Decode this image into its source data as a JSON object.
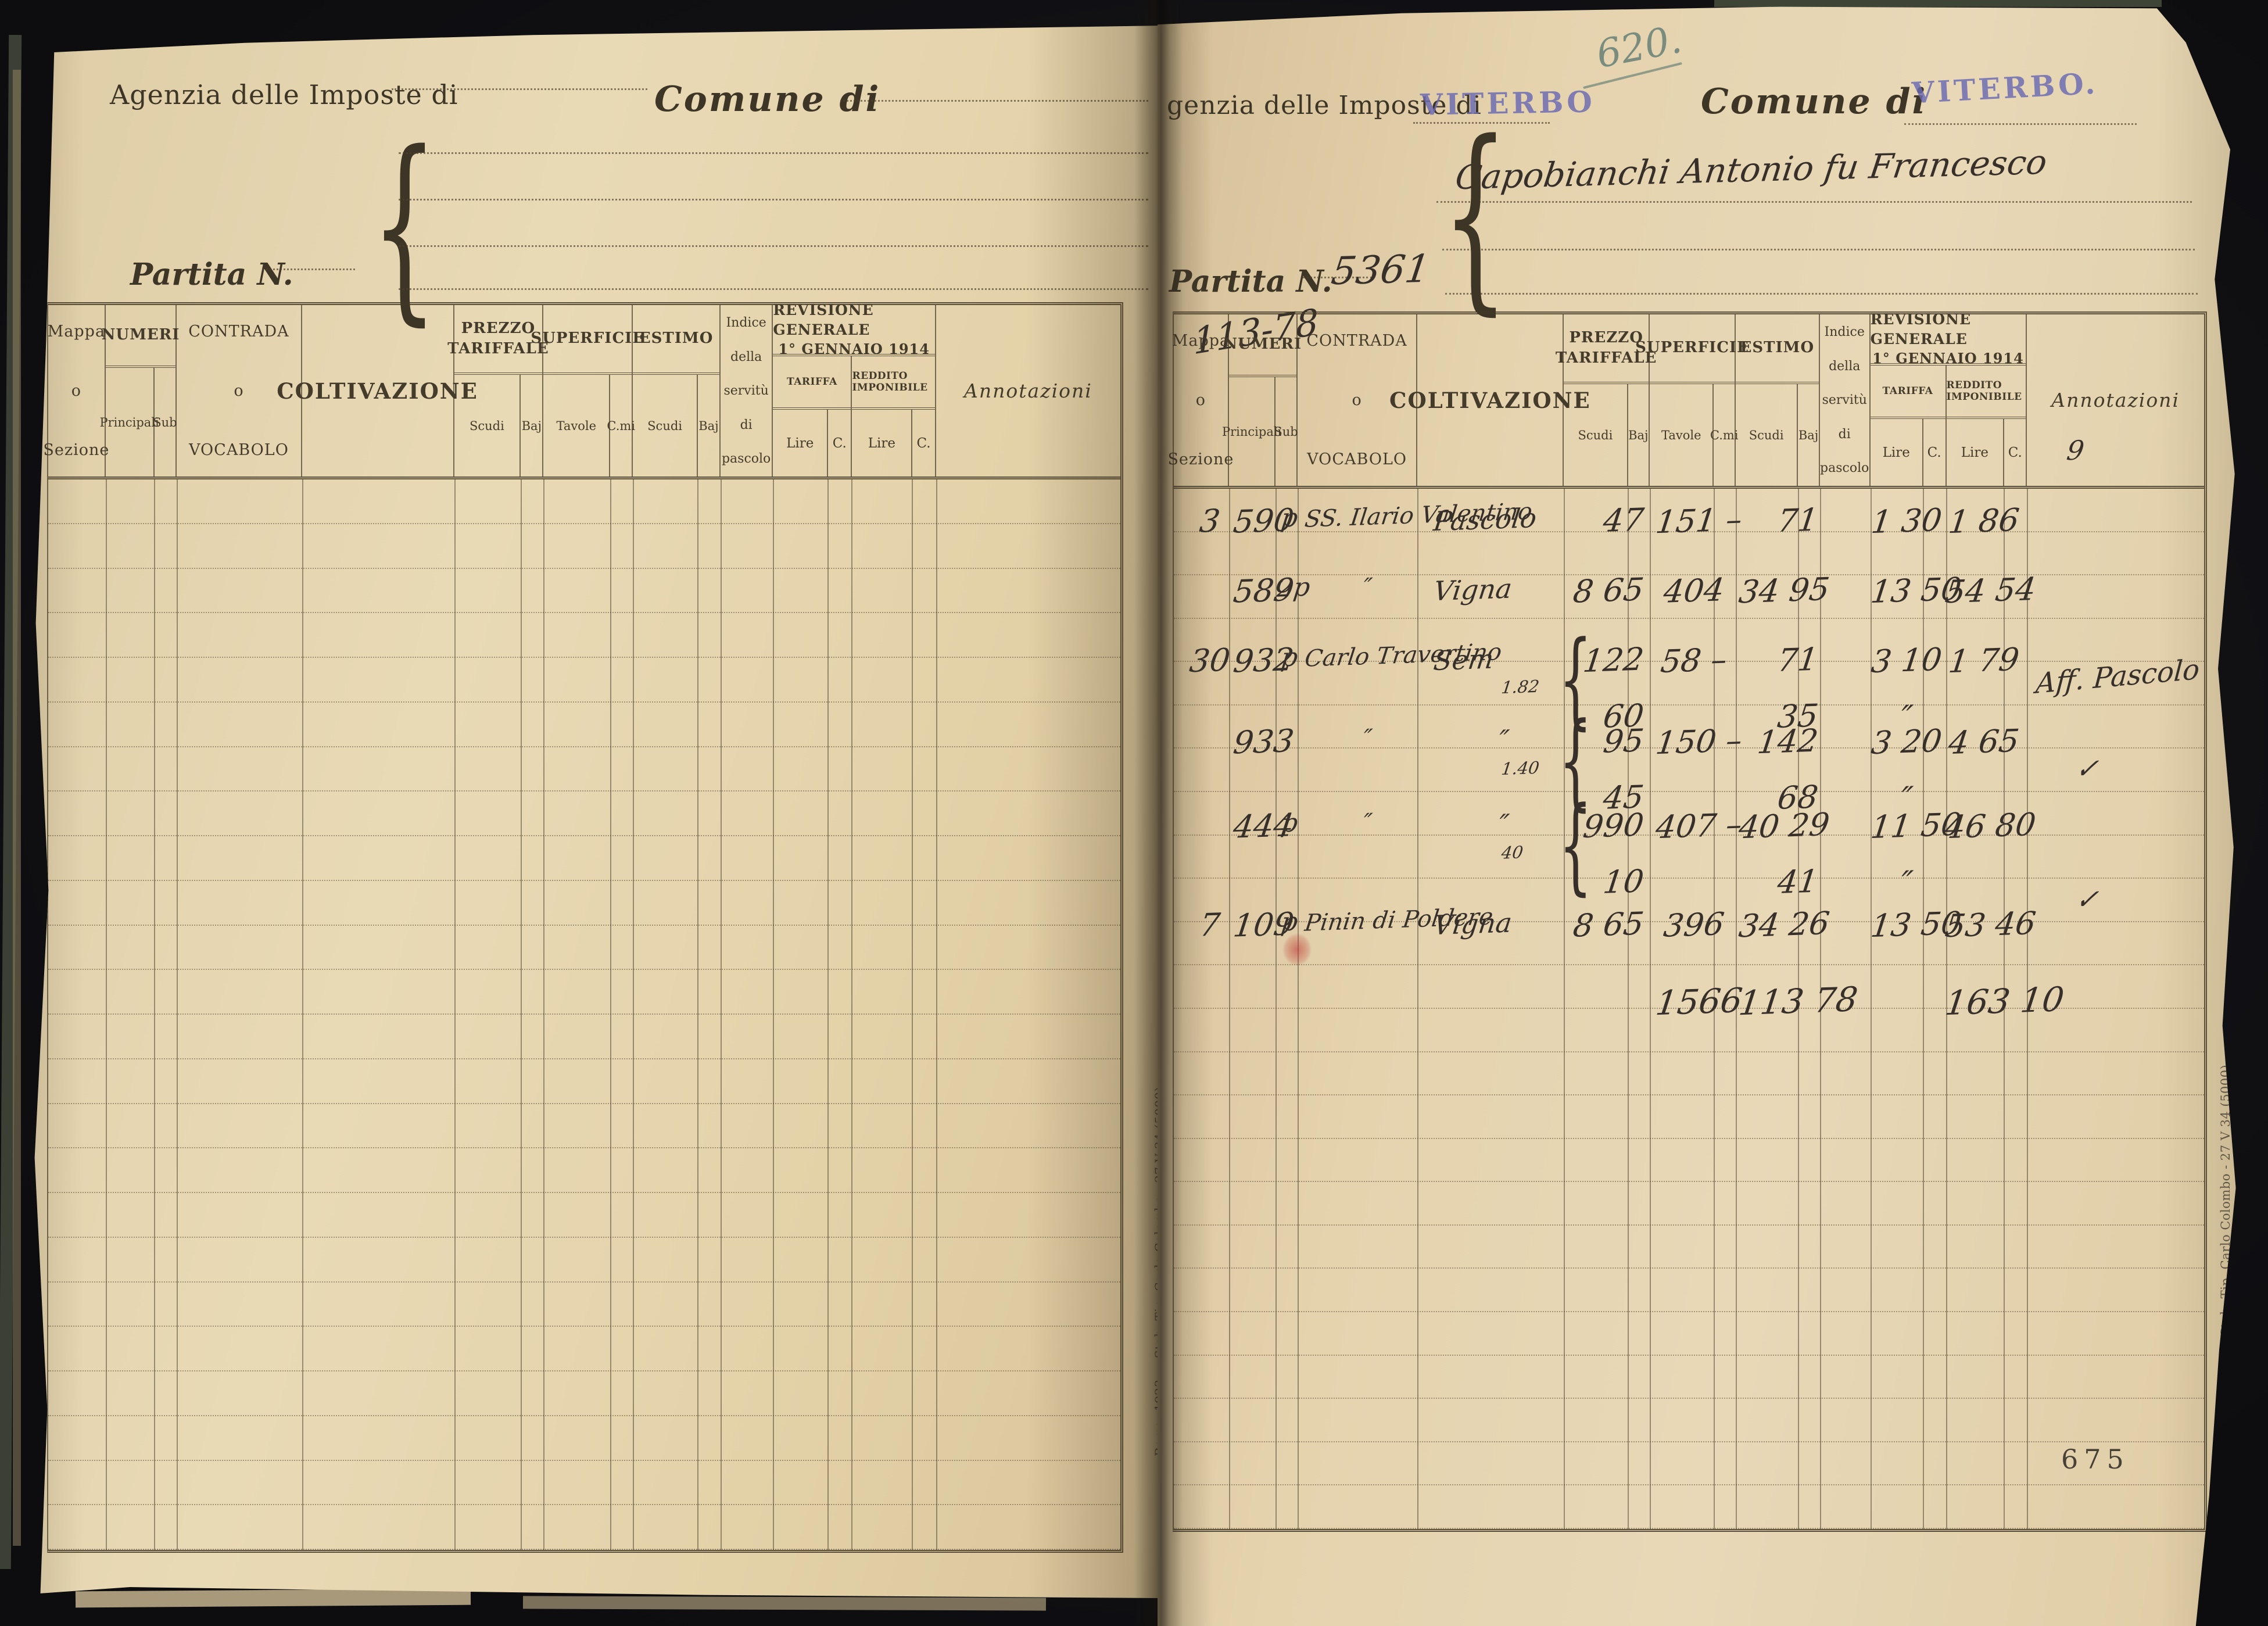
{
  "colors": {
    "paper": "#e8d8b7",
    "ink_print": "#3d3526",
    "ink_handwriting": "#37302a",
    "pencil": "#7a8c7e",
    "stamp_blue": "#6a6ab2",
    "background": "#101013"
  },
  "shared": {
    "brace": "{",
    "imprint": "Roma, 1923 — Stab. Tip. Carlo Colombo - 27 V 34 (5000)",
    "table": {
      "mappa": "Mappa",
      "o": "o",
      "sezione": "Sezione",
      "numeri": "NUMERI",
      "principali": "Principali",
      "sub": "Sub",
      "contrada": "CONTRADA",
      "vocabolo": "VOCABOLO",
      "coltivazione": "COLTIVAZIONE",
      "prezzo1": "PREZZO",
      "prezzo2": "TARIFFALE",
      "superficie": "SUPERFICIE",
      "estimo": "ESTIMO",
      "scudi": "Scudi",
      "baj": "Baj",
      "tavole": "Tavole",
      "cmi": "C.mi",
      "indice1": "Indice",
      "indice2": "della",
      "indice3": "servitù",
      "indice4": "di",
      "indice5": "pascolo",
      "rev1": "REVISIONE GENERALE",
      "rev2": "1° GENNAIO 1914",
      "tariffa": "TARIFFA",
      "reddito_imponibile": "REDDITO IMPONIBILE",
      "lire": "Lire",
      "c": "C.",
      "annotazioni": "Annotazioni"
    }
  },
  "left_page": {
    "agenzia_label": "Agenzia delle Imposte di",
    "comune_label": "Comune di",
    "partita_label": "Partita N."
  },
  "right_page": {
    "agenzia_label": "genzia delle Imposte di",
    "agenzia_value": "VITERBO",
    "comune_label": "Comune di",
    "comune_value": "VITERBO.",
    "folio_pencil": "620.",
    "owner_name": "Capobianchi Antonio fu Francesco",
    "partita_label": "Partita N.",
    "partita_number": "5361",
    "partita_pencil": "113-78",
    "annot_pencil": "9",
    "page_number": "675",
    "entries": [
      {
        "mappa": "3",
        "principali": "590",
        "sub": "p",
        "contrada": "SS. Ilario Valentino",
        "coltivazione": "Pascolo",
        "brace_label": "",
        "prezzo": "47",
        "prezzo2": "",
        "superficie": "151 –",
        "estimo": "71",
        "estimo2": "",
        "tariffa": "1 30",
        "tariffa2": "",
        "reddito": "1 86"
      },
      {
        "mappa": "",
        "principali": "589",
        "sub": "2p",
        "contrada": "″",
        "coltivazione": "Vigna",
        "brace_label": "",
        "prezzo": "8 65",
        "prezzo2": "",
        "superficie": "404",
        "estimo": "34 95",
        "estimo2": "",
        "tariffa": "13 50",
        "tariffa2": "",
        "reddito": "54 54"
      },
      {
        "mappa": "30",
        "principali": "932",
        "sub": "p",
        "contrada": "Carlo Travertino",
        "coltivazione": "Sem",
        "brace_label": "1.82",
        "prezzo": "122",
        "prezzo2": "60",
        "superficie": "58 –",
        "estimo": "71",
        "estimo2": "35",
        "tariffa": "3 10",
        "tariffa2": "″",
        "reddito": "1 79"
      },
      {
        "mappa": "",
        "principali": "933",
        "sub": "",
        "contrada": "″",
        "coltivazione": "″",
        "brace_label": "1.40",
        "prezzo": "95",
        "prezzo2": "45",
        "superficie": "150 –",
        "estimo": "142",
        "estimo2": "68",
        "tariffa": "3 20",
        "tariffa2": "″",
        "reddito": "4 65"
      },
      {
        "mappa": "",
        "principali": "444",
        "sub": "p",
        "contrada": "″",
        "coltivazione": "″",
        "brace_label": "40",
        "prezzo": "990",
        "prezzo2": "10",
        "superficie": "407 –",
        "estimo": "40 29",
        "estimo2": "41",
        "tariffa": "11 50",
        "tariffa2": "″",
        "reddito": "46 80"
      },
      {
        "mappa": "7",
        "principali": "109",
        "sub": "p",
        "contrada": "Pinin di Poldere",
        "coltivazione": "Vigna",
        "brace_label": "",
        "prezzo": "8 65",
        "prezzo2": "",
        "superficie": "396",
        "estimo": "34 26",
        "estimo2": "",
        "tariffa": "13 50",
        "tariffa2": "",
        "reddito": "53 46"
      }
    ],
    "totals": {
      "superficie": "1566",
      "estimo": "113 78",
      "reddito": "163 10"
    },
    "annotations": {
      "aff": "Aff. Pascolo",
      "check": "✓"
    }
  }
}
